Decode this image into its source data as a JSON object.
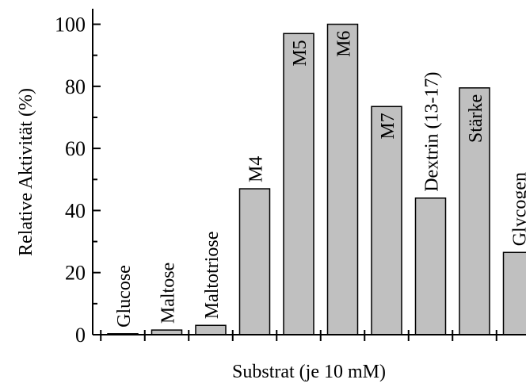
{
  "chart_data": {
    "type": "bar",
    "title": "",
    "xlabel": "Substrat (je 10 mM)",
    "ylabel": "Relative Aktivität (%)",
    "ylim": [
      0,
      105
    ],
    "yticks": [
      "0",
      "20",
      "40",
      "60",
      "80",
      "100"
    ],
    "categories": [
      "Glucose",
      "Maltose",
      "Maltotriose",
      "M4",
      "M5",
      "M6",
      "M7",
      "Dextrin (13-17)",
      "Stärke",
      "Glycogen"
    ],
    "values": [
      0.3,
      1.5,
      3,
      47,
      97,
      100,
      73.5,
      44,
      79.5,
      26.5
    ],
    "grid": false,
    "legend": "none",
    "colors": {
      "bar_fill": "#c0c0c0",
      "bar_stroke": "#000000"
    }
  }
}
